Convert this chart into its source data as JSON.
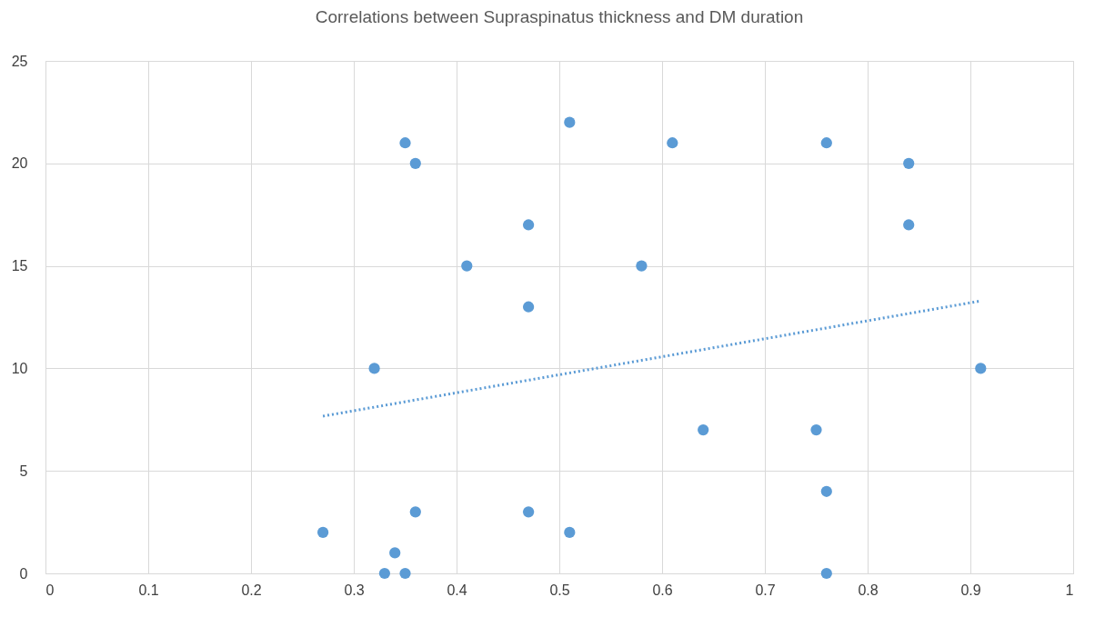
{
  "chart_data": {
    "type": "scatter",
    "title": "Correlations between Supraspinatus thickness and DM duration",
    "xlim": [
      0,
      1
    ],
    "xticks": [
      0,
      0.1,
      0.2,
      0.3,
      0.4,
      0.5,
      0.6,
      0.7,
      0.8,
      0.9,
      1
    ],
    "ylim": [
      0,
      25
    ],
    "yticks": [
      0,
      5,
      10,
      15,
      20,
      25
    ],
    "grid": true,
    "series": [
      {
        "color": "#5b9bd5",
        "marker": "circle",
        "x": [
          0.35,
          0.36,
          0.51,
          0.61,
          0.76,
          0.84,
          0.84,
          0.47,
          0.41,
          0.58,
          0.47,
          0.32,
          0.91,
          0.64,
          0.75,
          0.76,
          0.36,
          0.47,
          0.27,
          0.51,
          0.34,
          0.33,
          0.35,
          0.76
        ],
        "values": [
          21,
          20,
          22,
          21,
          21,
          20,
          17,
          17,
          15,
          15,
          13,
          10,
          10,
          7,
          7,
          4,
          3,
          3,
          2,
          2,
          1,
          0,
          0,
          0
        ]
      },
      {
        "type": "line",
        "color": "#5b9bd5",
        "marker": "none",
        "line_style": "dotted",
        "x": [
          0.27,
          0.91
        ],
        "values": [
          7.67,
          13.29
        ]
      }
    ]
  }
}
